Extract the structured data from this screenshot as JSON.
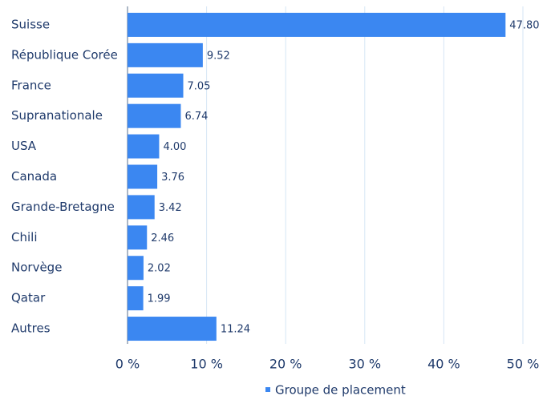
{
  "chart_data": {
    "type": "bar",
    "orientation": "horizontal",
    "categories": [
      "Suisse",
      "République Corée",
      "France",
      "Supranationale",
      "USA",
      "Canada",
      "Grande-Bretagne",
      "Chili",
      "Norvège",
      "Qatar",
      "Autres"
    ],
    "series": [
      {
        "name": "Groupe de placement",
        "color": "#3b87f1",
        "values": [
          47.8,
          9.52,
          7.05,
          6.74,
          4.0,
          3.76,
          3.42,
          2.46,
          2.02,
          1.99,
          11.24
        ],
        "value_labels": [
          "47.80",
          "9.52",
          "7.05",
          "6.74",
          "4.00",
          "3.76",
          "3.42",
          "2.46",
          "2.02",
          "1.99",
          "11.24"
        ]
      }
    ],
    "xlim": [
      0,
      50
    ],
    "xticks": [
      {
        "value": 0,
        "label": "0 %"
      },
      {
        "value": 10,
        "label": "10 %"
      },
      {
        "value": 20,
        "label": "20 %"
      },
      {
        "value": 30,
        "label": "30 %"
      },
      {
        "value": 40,
        "label": "40 %"
      },
      {
        "value": 50,
        "label": "50 %"
      }
    ],
    "grid": true,
    "legend": "bottom"
  }
}
